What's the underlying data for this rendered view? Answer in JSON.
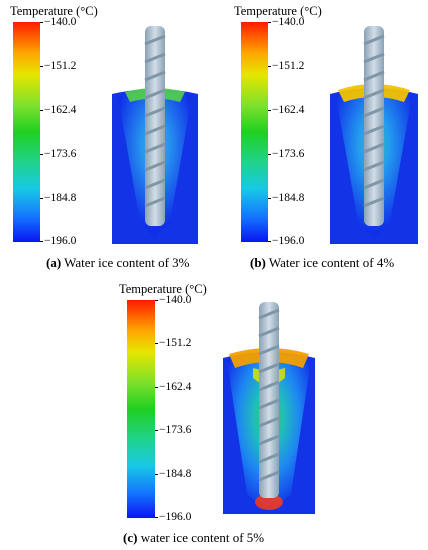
{
  "colorbar": {
    "title": "Temperature (°C)",
    "ticks": [
      "−140.0",
      "−151.2",
      "−162.4",
      "−173.6",
      "−184.8",
      "−196.0"
    ],
    "colors": [
      "#ff1a00",
      "#ffa500",
      "#e6e600",
      "#1fd021",
      "#18c8e6",
      "#0a14f0"
    ]
  },
  "panels": [
    {
      "id": "a",
      "caption_letter": "(a)",
      "caption_text": " Water ice content of 3%"
    },
    {
      "id": "b",
      "caption_letter": "(b)",
      "caption_text": " Water ice content of 4%"
    },
    {
      "id": "c",
      "caption_letter": "(c)",
      "caption_text": " water ice content of 5%"
    }
  ]
}
